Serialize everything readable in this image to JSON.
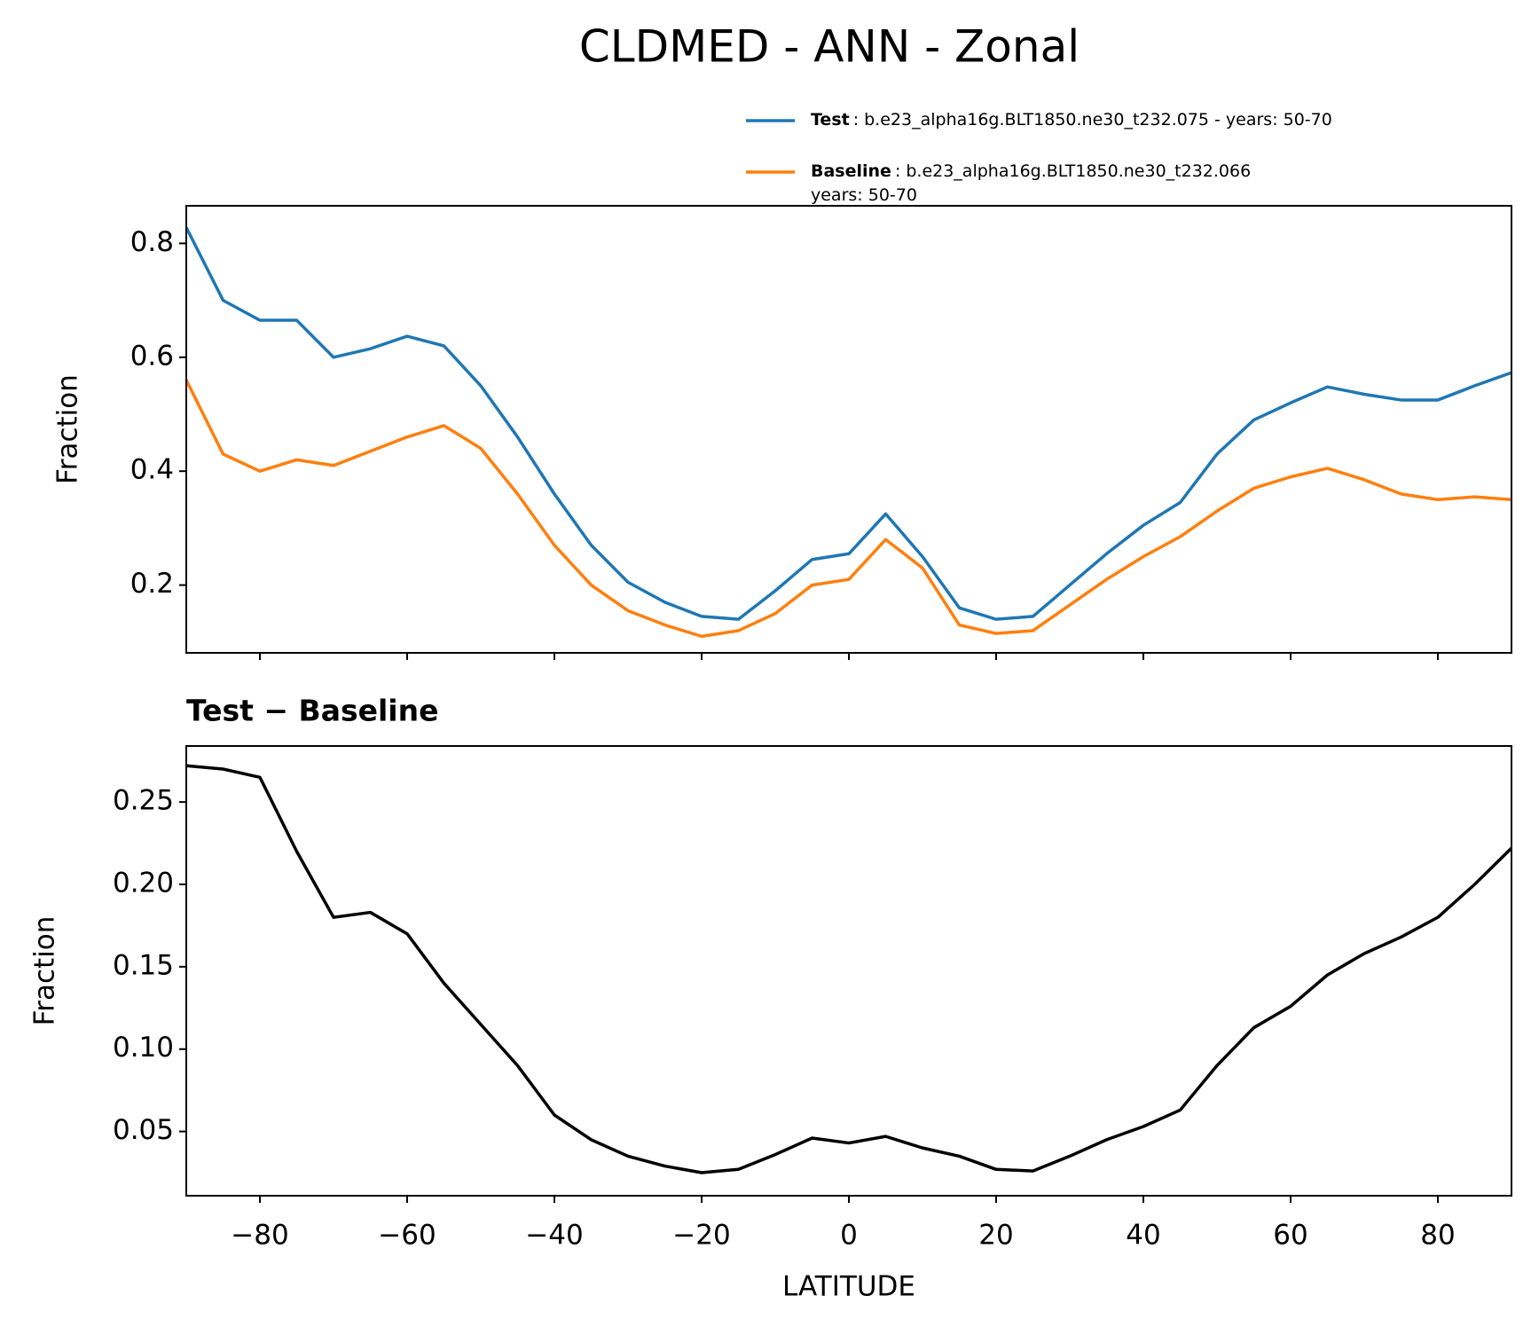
{
  "chart_data": [
    {
      "type": "line",
      "title": "CLDMED - ANN - Zonal",
      "ylabel": "Fraction",
      "x": [
        -90,
        -85,
        -80,
        -75,
        -70,
        -65,
        -60,
        -55,
        -50,
        -45,
        -40,
        -35,
        -30,
        -25,
        -20,
        -15,
        -10,
        -5,
        0,
        5,
        10,
        15,
        20,
        25,
        30,
        35,
        40,
        45,
        50,
        55,
        60,
        65,
        70,
        75,
        80,
        85,
        90
      ],
      "series": [
        {
          "name": "Test",
          "description": [
            "b.e23_alpha16g.BLT1850.ne30_t232.075 - years: 50-70"
          ],
          "color": "#1f77b4",
          "values": [
            0.828,
            0.7,
            0.665,
            0.665,
            0.6,
            0.615,
            0.637,
            0.62,
            0.55,
            0.46,
            0.36,
            0.27,
            0.205,
            0.17,
            0.145,
            0.14,
            0.19,
            0.245,
            0.255,
            0.325,
            0.25,
            0.16,
            0.14,
            0.145,
            0.2,
            0.255,
            0.305,
            0.345,
            0.43,
            0.49,
            0.52,
            0.548,
            0.535,
            0.525,
            0.525,
            0.55,
            0.573
          ]
        },
        {
          "name": "Baseline",
          "description": [
            "b.e23_alpha16g.BLT1850.ne30_t232.066",
            "years: 50-70"
          ],
          "color": "#ff7f0e",
          "values": [
            0.56,
            0.43,
            0.4,
            0.42,
            0.41,
            0.435,
            0.46,
            0.48,
            0.44,
            0.36,
            0.27,
            0.2,
            0.155,
            0.13,
            0.11,
            0.12,
            0.15,
            0.2,
            0.21,
            0.28,
            0.23,
            0.13,
            0.115,
            0.12,
            0.165,
            0.21,
            0.25,
            0.285,
            0.33,
            0.37,
            0.39,
            0.405,
            0.385,
            0.36,
            0.35,
            0.355,
            0.35
          ]
        }
      ],
      "xlim": [
        -90,
        90
      ],
      "xticks": [
        -80,
        -60,
        -40,
        -20,
        0,
        20,
        40,
        60,
        80
      ],
      "ylim": [
        0.081,
        0.866
      ],
      "yticks": [
        0.2,
        0.4,
        0.6,
        0.8
      ]
    },
    {
      "type": "line",
      "title": "Test − Baseline",
      "ylabel": "Fraction",
      "xlabel": "LATITUDE",
      "x": [
        -90,
        -85,
        -80,
        -75,
        -70,
        -65,
        -60,
        -55,
        -50,
        -45,
        -40,
        -35,
        -30,
        -25,
        -20,
        -15,
        -10,
        -5,
        0,
        5,
        10,
        15,
        20,
        25,
        30,
        35,
        40,
        45,
        50,
        55,
        60,
        65,
        70,
        75,
        80,
        85,
        90
      ],
      "series": [
        {
          "color": "#000000",
          "values": [
            0.272,
            0.27,
            0.265,
            0.22,
            0.18,
            0.183,
            0.17,
            0.14,
            0.115,
            0.09,
            0.06,
            0.045,
            0.035,
            0.029,
            0.025,
            0.027,
            0.036,
            0.046,
            0.043,
            0.047,
            0.04,
            0.035,
            0.027,
            0.026,
            0.035,
            0.045,
            0.053,
            0.063,
            0.09,
            0.113,
            0.126,
            0.145,
            0.158,
            0.168,
            0.18,
            0.2,
            0.222
          ]
        }
      ],
      "xlim": [
        -90,
        90
      ],
      "xticks": [
        {
          "value": -80,
          "label": "−80"
        },
        {
          "value": -60,
          "label": "−60"
        },
        {
          "value": -40,
          "label": "−40"
        },
        {
          "value": -20,
          "label": "−20"
        },
        0,
        20,
        40,
        60,
        80
      ],
      "ylim": [
        0.011,
        0.284
      ],
      "yticks": [
        0.05,
        {
          "value": 0.1,
          "label": "0.10"
        },
        0.15,
        {
          "value": 0.2,
          "label": "0.20"
        },
        0.25
      ]
    }
  ]
}
